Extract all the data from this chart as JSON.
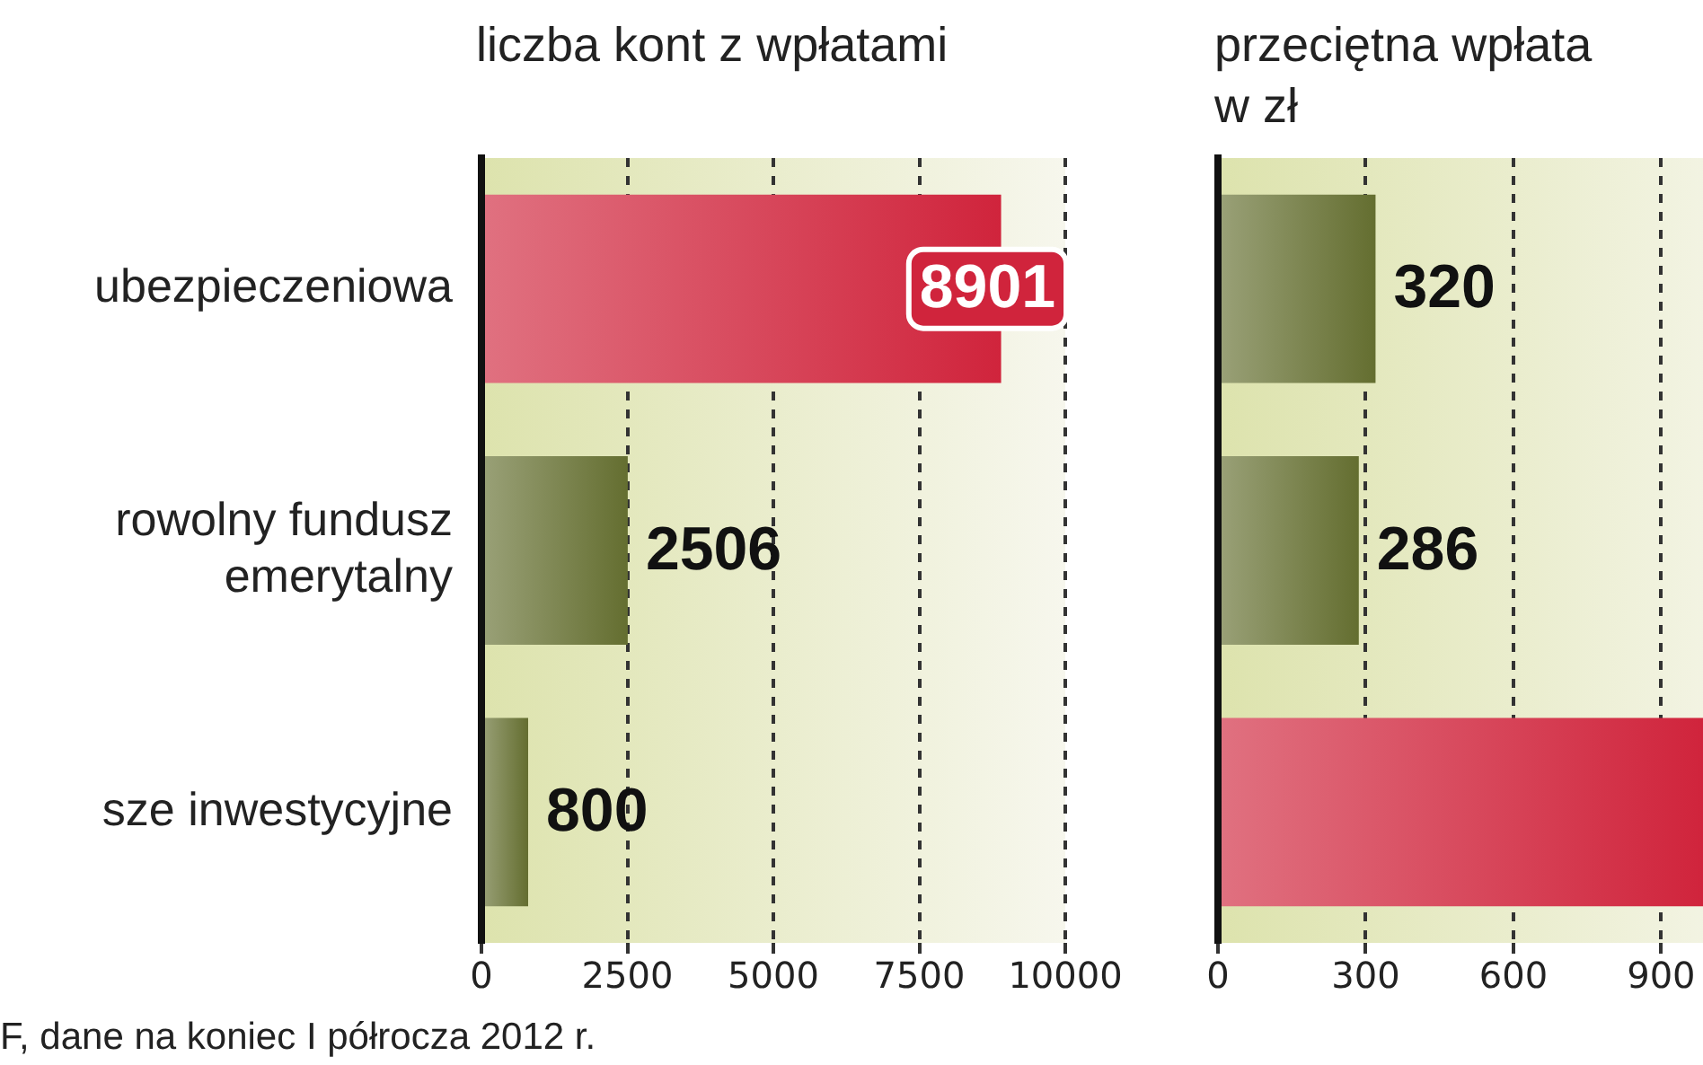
{
  "chart_data": [
    {
      "type": "bar",
      "orientation": "horizontal",
      "title": "liczba kont z wpłatami",
      "categories": [
        "ubezpieczeniowa",
        "rowolny fundusz emerytalny",
        "sze inwestycyjne"
      ],
      "series": [
        {
          "colors": [
            "#d0243c",
            "#646e30",
            "#646e30"
          ],
          "values": [
            8901,
            2506,
            800
          ],
          "value_labels": [
            "8901",
            "2506",
            "800"
          ]
        }
      ],
      "xlim": [
        0,
        10000
      ],
      "xticks": [
        0,
        2500,
        5000,
        7500,
        10000
      ],
      "grid": "x",
      "legend": false,
      "annotations": [
        "F, dane na koniec I półrocza 2012 r."
      ]
    },
    {
      "type": "bar",
      "orientation": "horizontal",
      "title": "przeciętna wpłata w zł",
      "categories": [
        null,
        null,
        null
      ],
      "series": [
        {
          "colors": [
            "#646e30",
            "#646e30",
            "#d0243c"
          ],
          "values": [
            320,
            286,
            985
          ],
          "value_labels": [
            "320",
            "286",
            null
          ]
        }
      ],
      "xlim": [
        0,
        985
      ],
      "xticks": [
        0,
        300,
        600,
        900
      ],
      "grid": "x",
      "legend": false
    }
  ]
}
